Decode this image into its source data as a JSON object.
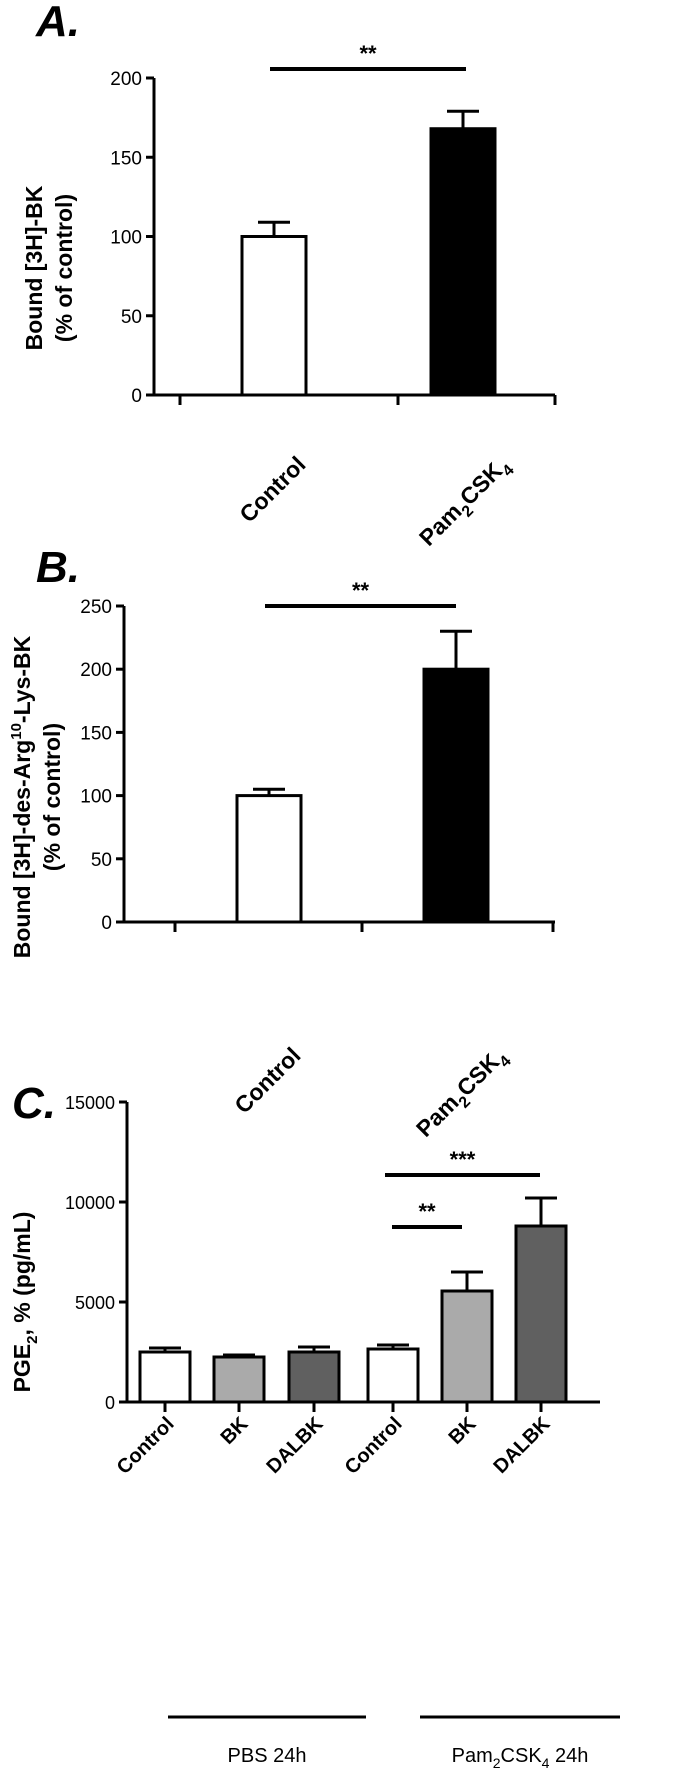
{
  "chart_data": [
    {
      "panel": "A.",
      "type": "bar",
      "categories": [
        "Control",
        "Pam2CSK4"
      ],
      "values": [
        100,
        168
      ],
      "errors": [
        9,
        11
      ],
      "bar_colors": [
        "#ffffff",
        "#000000"
      ],
      "ylabel_line1": "Bound [3H]-BK",
      "ylabel_line2": "(% of control)",
      "ylim": [
        0,
        200
      ],
      "yticks": [
        0,
        50,
        100,
        150,
        200
      ],
      "significance": [
        {
          "from": 0,
          "to": 1,
          "label": "**"
        }
      ]
    },
    {
      "panel": "B.",
      "type": "bar",
      "categories": [
        "Control",
        "Pam2CSK4"
      ],
      "values": [
        100,
        200
      ],
      "errors": [
        5,
        30
      ],
      "bar_colors": [
        "#ffffff",
        "#000000"
      ],
      "ylabel_line1": "Bound [3H]-des-Arg10-Lys-BK",
      "ylabel_line2": "(% of control)",
      "ylim": [
        0,
        250
      ],
      "yticks": [
        0,
        50,
        100,
        150,
        200,
        250
      ],
      "significance": [
        {
          "from": 0,
          "to": 1,
          "label": "**"
        }
      ]
    },
    {
      "panel": "C.",
      "type": "bar",
      "categories": [
        "Control",
        "BK",
        "DALBK",
        "Control",
        "BK",
        "DALBK"
      ],
      "values": [
        2500,
        2250,
        2500,
        2650,
        5550,
        8800
      ],
      "errors": [
        200,
        100,
        250,
        200,
        950,
        1400
      ],
      "bar_colors": [
        "#ffffff",
        "#aaaaaa",
        "#606060",
        "#ffffff",
        "#aaaaaa",
        "#606060"
      ],
      "ylabel": "PGE2, % (pg/mL)",
      "ylim": [
        0,
        15000
      ],
      "yticks": [
        0,
        5000,
        10000,
        15000
      ],
      "groups": [
        {
          "label": "PBS 24h",
          "range": [
            0,
            2
          ]
        },
        {
          "label": "Pam2CSK4 24h",
          "range": [
            3,
            5
          ]
        }
      ],
      "significance": [
        {
          "from": 3,
          "to": 4,
          "label": "**"
        },
        {
          "from": 3,
          "to": 5,
          "label": "***"
        }
      ]
    }
  ]
}
